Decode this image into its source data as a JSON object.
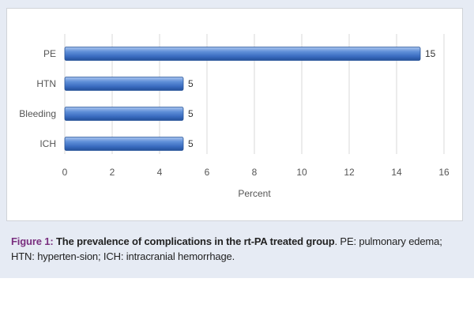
{
  "chart_data": {
    "type": "bar",
    "orientation": "horizontal",
    "categories": [
      "PE",
      "HTN",
      "Bleeding",
      "ICH"
    ],
    "values": [
      15,
      5,
      5,
      5
    ],
    "xlabel": "Percent",
    "xlim": [
      0,
      16
    ],
    "xticks": [
      0,
      2,
      4,
      6,
      8,
      10,
      12,
      14,
      16
    ],
    "grid": true,
    "bar_color": "#4472c4",
    "data_labels": true
  },
  "caption": {
    "label": "Figure 1:",
    "title": "The prevalence of complications in the rt-PA treated group",
    "body": ". PE: pulmonary edema; HTN: hyperten-sion; ICH: intracranial hemorrhage."
  }
}
